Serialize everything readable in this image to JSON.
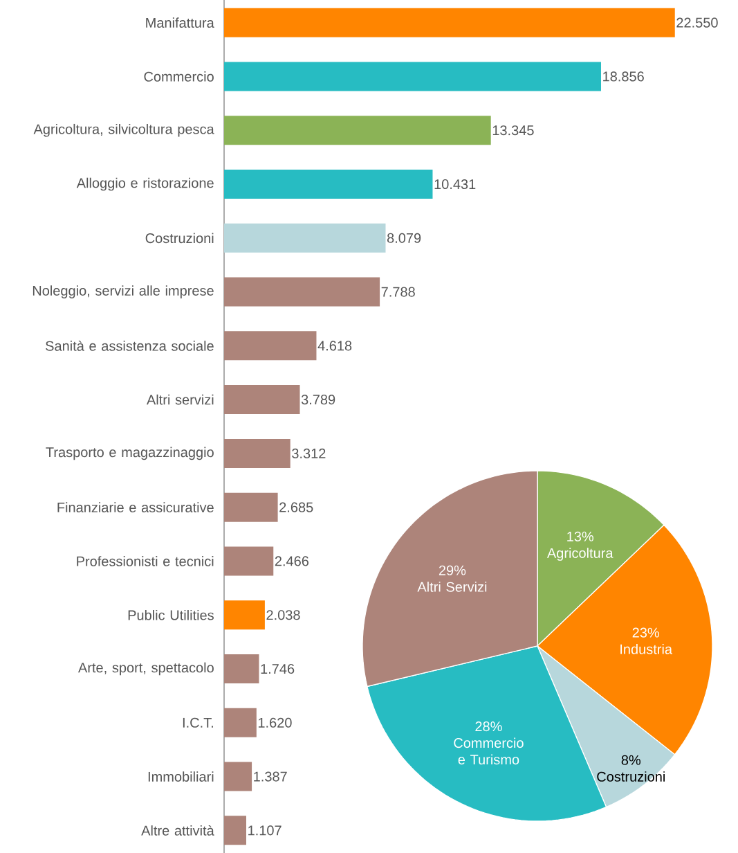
{
  "chart_data": [
    {
      "type": "bar",
      "orientation": "horizontal",
      "categories": [
        "Manifattura",
        "Commercio",
        "Agricoltura, silvicoltura pesca",
        "Alloggio e ristorazione",
        "Costruzioni",
        "Noleggio, servizi alle imprese",
        "Sanità e assistenza sociale",
        "Altri servizi",
        "Trasporto e magazzinaggio",
        "Finanziarie e assicurative",
        "Professionisti e tecnici",
        "Public Utilities",
        "Arte, sport, spettacolo",
        "I.C.T.",
        "Immobiliari",
        "Altre attività"
      ],
      "values": [
        22550,
        18856,
        13345,
        10431,
        8079,
        7788,
        4618,
        3789,
        3312,
        2685,
        2466,
        2038,
        1746,
        1620,
        1387,
        1107
      ],
      "colors": [
        "#ff8500",
        "#27bcc2",
        "#8bb356",
        "#27bcc2",
        "#b7d7dc",
        "#ad847a",
        "#ad847a",
        "#ad847a",
        "#ad847a",
        "#ad847a",
        "#ad847a",
        "#ff8500",
        "#ad847a",
        "#ad847a",
        "#ad847a",
        "#ad847a"
      ],
      "value_labels": [
        "22.550",
        "18.856",
        "13.345",
        "10.431",
        "8.079",
        "7.788",
        "4.618",
        "3.789",
        "3.312",
        "2.685",
        "2.466",
        "2.038",
        "1.746",
        "1.620",
        "1.387",
        "1.107"
      ],
      "tick_labels": "y"
    },
    {
      "type": "pie",
      "categories": [
        "Agricoltura",
        "Industria",
        "Costruzioni",
        "Commercio e Turismo",
        "Altri Servizi"
      ],
      "values": [
        13,
        23,
        8,
        28,
        29
      ],
      "colors": [
        "#8bb356",
        "#ff8500",
        "#b7d7dc",
        "#27bcc2",
        "#ad847a"
      ],
      "value_labels": [
        "13%",
        "23%",
        "8%",
        "28%",
        "29%"
      ]
    }
  ]
}
